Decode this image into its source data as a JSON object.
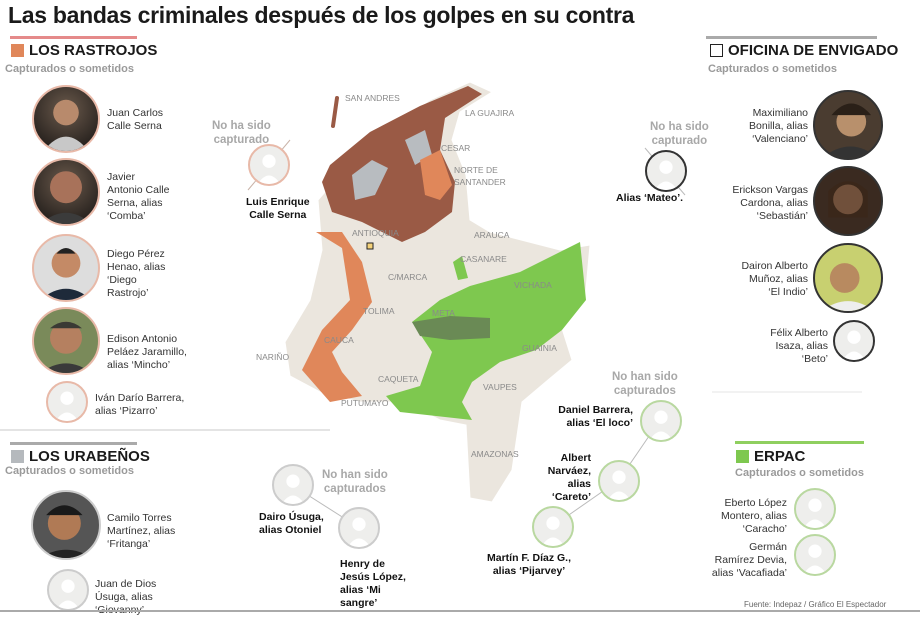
{
  "title": "Las bandas criminales después de los golpes en su contra",
  "colors": {
    "rastrojos": "#e0875a",
    "rastrojos_dark": "#9a5a45",
    "urabenos": "#b5b9bd",
    "erpac": "#7ec84f",
    "envigado": "#ffffff",
    "map_base": "#ebe6de"
  },
  "rastrojos": {
    "name": "LOS RASTROJOS",
    "subtitle": "Capturados o sometidos",
    "captured": [
      {
        "name": "Juan Carlos\nCalle Serna",
        "photo": true
      },
      {
        "name": "Javier\nAntonio Calle\nSerna, alias\n‘Comba’",
        "photo": true
      },
      {
        "name": "Diego Pérez\nHenao, alias\n‘Diego\nRastrojo’",
        "photo": true
      },
      {
        "name": "Edison Antonio\nPeláez Jaramillo,\nalias ‘Mincho’",
        "photo": true
      },
      {
        "name": "Iván Darío Barrera,\nalias ‘Pizarro’",
        "photo": false
      }
    ],
    "not_captured_label": "No ha sido\ncapturado",
    "not_captured": [
      {
        "name": "Luis Enrique\nCalle Serna"
      }
    ]
  },
  "envigado": {
    "name": "OFICINA DE ENVIGADO",
    "subtitle": "Capturados o sometidos",
    "captured": [
      {
        "name": "Maximiliano\nBonilla, alias\n‘Valenciano’",
        "photo": true
      },
      {
        "name": "Erickson Vargas\nCardona, alias\n‘Sebastián’",
        "photo": true
      },
      {
        "name": "Dairon Alberto\nMuñoz, alias\n‘El Indio’",
        "photo": true
      },
      {
        "name": "Félix Alberto\nIsaza, alias\n‘Beto’",
        "photo": false
      }
    ],
    "not_captured_label": "No ha sido\ncapturado",
    "not_captured": [
      {
        "name": "Alias ‘Mateo’."
      }
    ]
  },
  "urabenos": {
    "name": "LOS URABEÑOS",
    "subtitle": "Capturados o sometidos",
    "captured": [
      {
        "name": "Camilo Torres\nMartínez, alias\n‘Fritanga’",
        "photo": true
      },
      {
        "name": "Juan de Dios\nÚsuga, alias\n‘Giovanny’",
        "photo": false
      }
    ],
    "not_captured_label": "No han sido\ncapturados",
    "not_captured": [
      {
        "name": "Dairo Úsuga,\nalias Otoniel"
      },
      {
        "name": "Henry de\nJesús López,\nalias ‘Mi\nsangre’"
      }
    ]
  },
  "erpac": {
    "name": "ERPAC",
    "subtitle": "Capturados o sometidos",
    "captured": [
      {
        "name": "Eberto López\nMontero, alias\n‘Caracho’",
        "photo": false
      },
      {
        "name": "Germán\nRamírez Devia,\nalias ‘Vacafiada’",
        "photo": false
      }
    ],
    "not_captured_label": "No han sido\ncapturados",
    "not_captured": [
      {
        "name": "Daniel Barrera,\nalias ‘El loco’"
      },
      {
        "name": "Albert\nNarváez,\nalias\n‘Careto’"
      },
      {
        "name": "Martín F. Díaz G.,\nalias ‘Pijarvey’"
      }
    ]
  },
  "map": {
    "departments": [
      "SAN ANDRES",
      "LA GUAJIRA",
      "CESAR",
      "NORTE DE",
      "SANTANDER",
      "ANTIOQUIA",
      "ARAUCA",
      "CASANARE",
      "C/MARCA",
      "VICHADA",
      "TOLIMA",
      "META",
      "CAUCA",
      "GUAINIA",
      "NARIÑO",
      "CAQUETA",
      "VAUPES",
      "PUTUMAYO",
      "AMAZONAS"
    ]
  },
  "source": "Fuente: Indepaz / Gráfico El Espectador"
}
